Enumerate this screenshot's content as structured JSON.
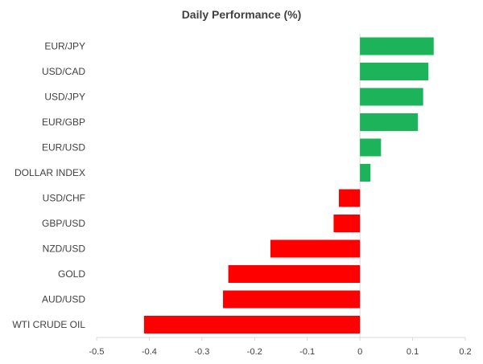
{
  "chart_data": {
    "type": "bar",
    "orientation": "horizontal",
    "title": "Daily Performance (%)",
    "xlabel": "",
    "ylabel": "",
    "categories": [
      "EUR/JPY",
      "USD/CAD",
      "USD/JPY",
      "EUR/GBP",
      "EUR/USD",
      "DOLLAR INDEX",
      "USD/CHF",
      "GBP/USD",
      "NZD/USD",
      "GOLD",
      "AUD/USD",
      "WTI CRUDE OIL"
    ],
    "values": [
      0.14,
      0.13,
      0.12,
      0.11,
      0.04,
      0.02,
      -0.04,
      -0.05,
      -0.17,
      -0.25,
      -0.26,
      -0.41
    ],
    "xlim": [
      -0.5,
      0.2
    ],
    "xticks": [
      "-0.5",
      "-0.4",
      "-0.3",
      "-0.2",
      "-0.1",
      "0",
      "0.1",
      "0.2"
    ],
    "grid": false,
    "legend": "none",
    "colors": {
      "positive": "#1cb35a",
      "negative": "#ff0000",
      "axis": "#d9d9d9",
      "text": "#404040"
    }
  }
}
